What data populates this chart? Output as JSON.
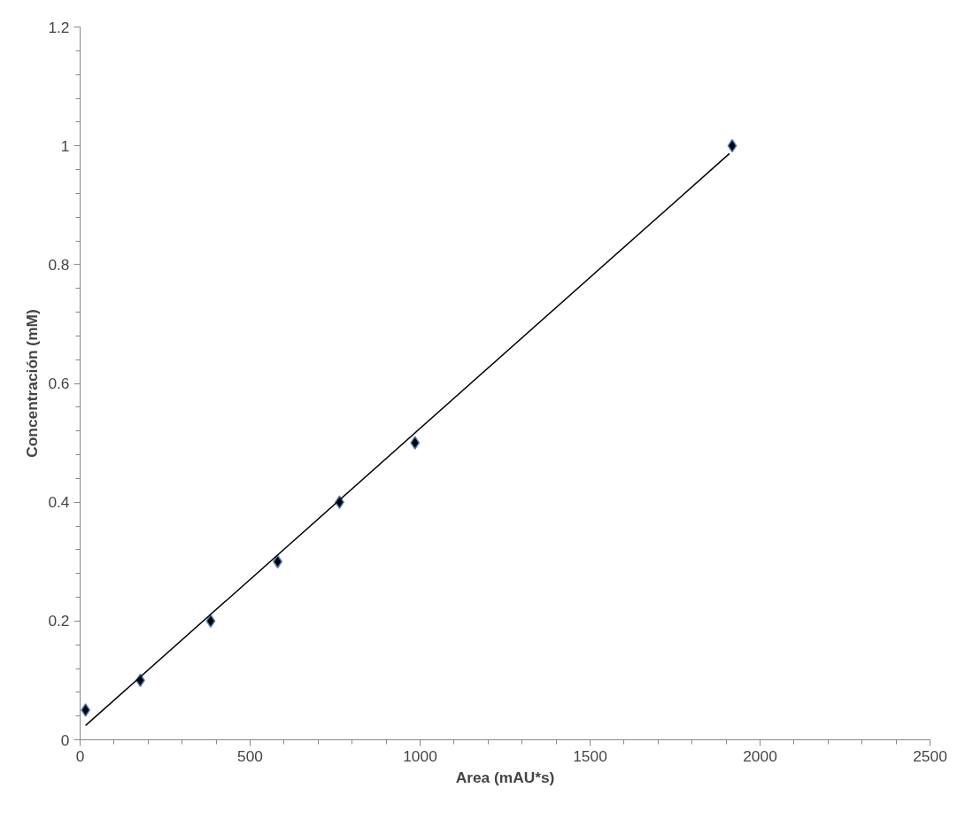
{
  "chart_data": {
    "type": "scatter",
    "xlabel": "Area (mAU*s)",
    "ylabel": "Concentración (mM)",
    "xlim": [
      0,
      2500
    ],
    "ylim": [
      0,
      1.2
    ],
    "xticks": [
      0,
      500,
      1000,
      1500,
      2000,
      2500
    ],
    "yticks": [
      0,
      0.2,
      0.4,
      0.6,
      0.8,
      1,
      1.2
    ],
    "grid": false,
    "marker": "diamond",
    "series": [
      {
        "color": "#000000",
        "x": [
          16,
          177,
          384,
          581,
          763,
          985,
          1918
        ],
        "values": [
          0.05,
          0.1,
          0.2,
          0.3,
          0.4,
          0.5,
          1.0
        ]
      },
      {
        "type": "line",
        "color": "#000000",
        "marker": "none",
        "line_style": "solid",
        "x": [
          16,
          1910
        ],
        "values": [
          0.024,
          0.987
        ]
      }
    ]
  }
}
